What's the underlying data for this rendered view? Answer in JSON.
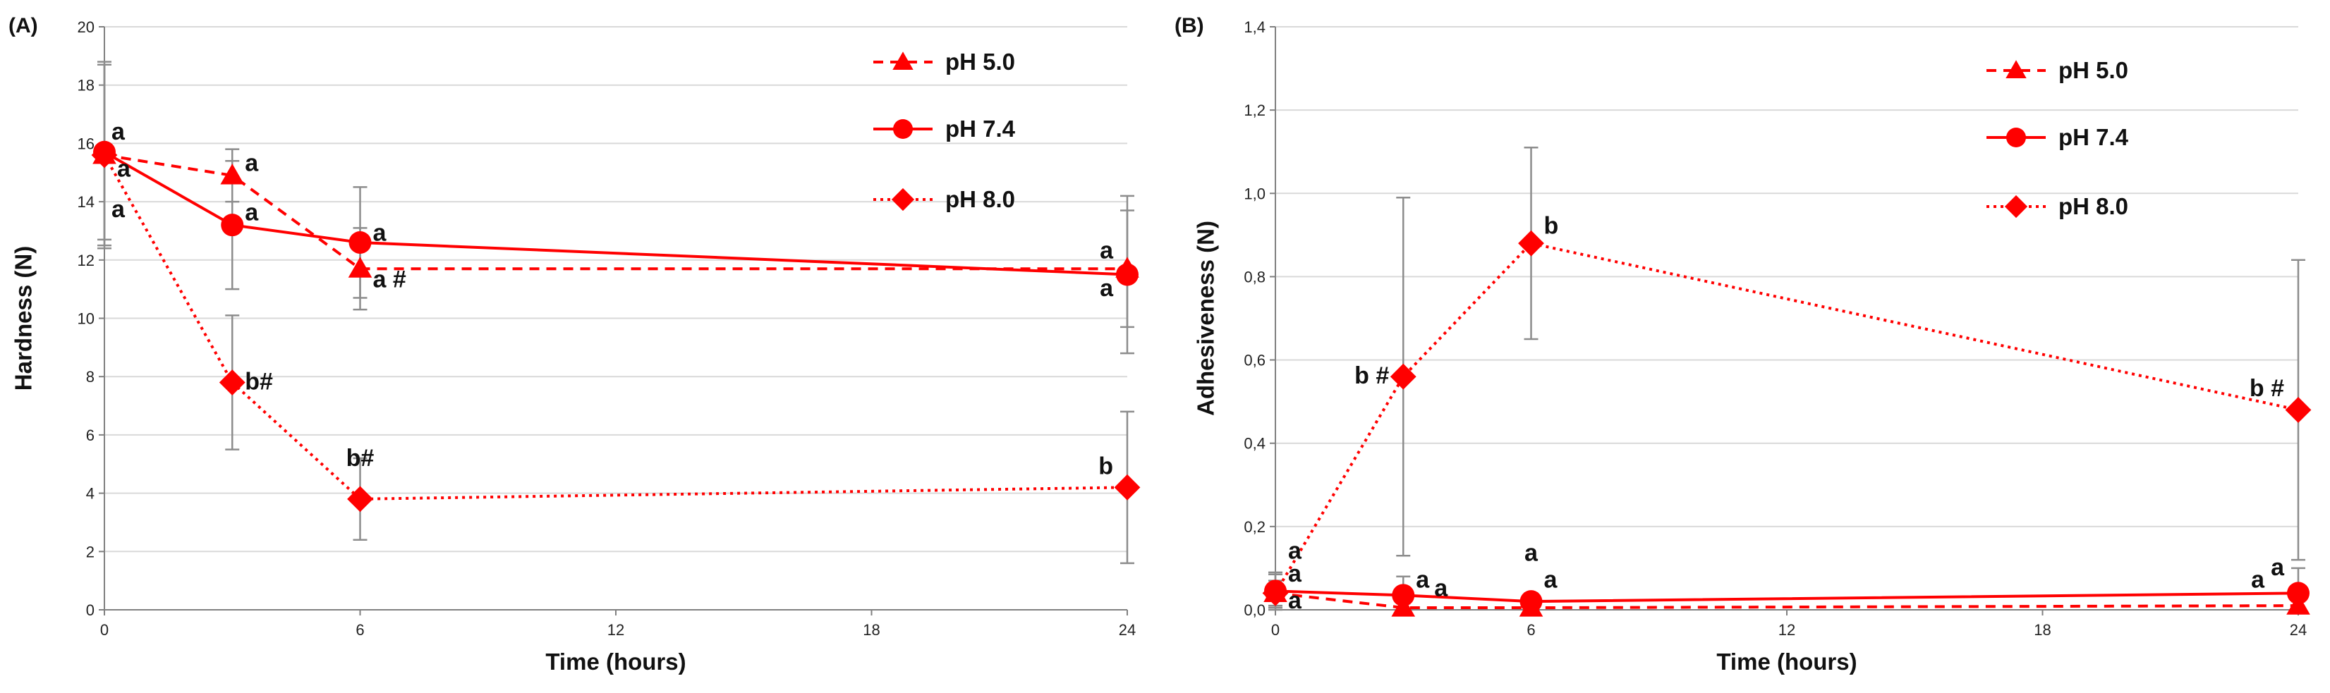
{
  "chart_data": [
    {
      "panel": "(A)",
      "type": "line",
      "xlabel": "Time (hours)",
      "ylabel": "Hardness (N)",
      "xlim": [
        0,
        24
      ],
      "ylim": [
        0,
        20
      ],
      "xticks": [
        0,
        6,
        12,
        18,
        24
      ],
      "xtick_labels": [
        "0",
        "6",
        "12",
        "18",
        "24"
      ],
      "yticks": [
        0,
        2,
        4,
        6,
        8,
        10,
        12,
        14,
        16,
        18,
        20
      ],
      "ytick_labels": [
        "0",
        "2",
        "4",
        "6",
        "8",
        "10",
        "12",
        "14",
        "16",
        "18",
        "20"
      ],
      "grid": "horizontal",
      "legend_position": "top-right",
      "series": [
        {
          "name": "pH 5.0",
          "marker": "triangle",
          "dash": "dashed",
          "x": [
            0,
            3,
            6,
            24
          ],
          "y": [
            15.6,
            14.9,
            11.7,
            11.7
          ],
          "err": [
            3.2,
            0.9,
            1.4,
            2.0
          ]
        },
        {
          "name": "pH 7.4",
          "marker": "circle",
          "dash": "solid",
          "x": [
            0,
            3,
            6,
            24
          ],
          "y": [
            15.7,
            13.2,
            12.6,
            11.5
          ],
          "err": [
            3.0,
            2.2,
            1.9,
            2.7
          ]
        },
        {
          "name": "pH 8.0",
          "marker": "diamond",
          "dash": "dotted",
          "x": [
            0,
            3,
            6,
            24
          ],
          "y": [
            15.6,
            7.8,
            3.8,
            4.2
          ],
          "err": [
            3.1,
            2.3,
            1.4,
            2.6
          ]
        }
      ],
      "annotations": [
        {
          "text": "a",
          "x": 0,
          "y": 15.7,
          "anchor": "above-right"
        },
        {
          "text": "a",
          "x": 0,
          "y": 15.1,
          "anchor": "right"
        },
        {
          "text": "a",
          "x": 0,
          "y": 14.2,
          "anchor": "below-right"
        },
        {
          "text": "a",
          "x": 3,
          "y": 15.3,
          "anchor": "right"
        },
        {
          "text": "a",
          "x": 3,
          "y": 13.6,
          "anchor": "right"
        },
        {
          "text": "b#",
          "x": 3,
          "y": 7.8,
          "anchor": "right"
        },
        {
          "text": "a",
          "x": 6,
          "y": 12.9,
          "anchor": "right"
        },
        {
          "text": "a #",
          "x": 6,
          "y": 11.3,
          "anchor": "right"
        },
        {
          "text": "b#",
          "x": 6,
          "y": 4.4,
          "anchor": "above"
        },
        {
          "text": "a",
          "x": 24,
          "y": 12.3,
          "anchor": "left"
        },
        {
          "text": "a",
          "x": 24,
          "y": 11.0,
          "anchor": "left"
        },
        {
          "text": "b",
          "x": 24,
          "y": 4.9,
          "anchor": "left"
        }
      ]
    },
    {
      "panel": "(B)",
      "type": "line",
      "xlabel": "Time (hours)",
      "ylabel": "Adhesiveness (N)",
      "xlim": [
        0,
        24
      ],
      "ylim": [
        0,
        1.4
      ],
      "xticks": [
        0,
        6,
        12,
        18,
        24
      ],
      "xtick_labels": [
        "0",
        "6",
        "12",
        "18",
        "24"
      ],
      "yticks": [
        0,
        0.2,
        0.4,
        0.6,
        0.8,
        1.0,
        1.2,
        1.4
      ],
      "ytick_labels": [
        "0,0",
        "0,2",
        "0,4",
        "0,6",
        "0,8",
        "1,0",
        "1,2",
        "1,4"
      ],
      "grid": "horizontal",
      "legend_position": "top-right",
      "series": [
        {
          "name": "pH 5.0",
          "marker": "triangle",
          "dash": "dashed",
          "x": [
            0,
            3,
            6,
            24
          ],
          "y": [
            0.04,
            0.005,
            0.005,
            0.01
          ],
          "err": [
            0.03,
            0.01,
            0.01,
            0.01
          ]
        },
        {
          "name": "pH 7.4",
          "marker": "circle",
          "dash": "solid",
          "x": [
            0,
            3,
            6,
            24
          ],
          "y": [
            0.045,
            0.035,
            0.02,
            0.04
          ],
          "err": [
            0.04,
            0.045,
            0.02,
            0.06
          ]
        },
        {
          "name": "pH 8.0",
          "marker": "diamond",
          "dash": "dotted",
          "x": [
            0,
            3,
            6,
            24
          ],
          "y": [
            0.04,
            0.56,
            0.88,
            0.48
          ],
          "err": [
            0.05,
            0.43,
            0.23,
            0.36
          ]
        }
      ],
      "annotations": [
        {
          "text": "a",
          "x": 0,
          "y": 0.14,
          "anchor": "right"
        },
        {
          "text": "a",
          "x": 0,
          "y": 0.085,
          "anchor": "right"
        },
        {
          "text": "a",
          "x": 0,
          "y": 0.02,
          "anchor": "right"
        },
        {
          "text": "b #",
          "x": 3,
          "y": 0.56,
          "anchor": "left"
        },
        {
          "text": "a",
          "x": 3,
          "y": 0.07,
          "anchor": "right"
        },
        {
          "text": "a",
          "x": 3,
          "y": 0.05,
          "anchor": "right-far"
        },
        {
          "text": "a",
          "x": 6,
          "y": 0.08,
          "anchor": "above"
        },
        {
          "text": "a",
          "x": 6,
          "y": 0.07,
          "anchor": "right"
        },
        {
          "text": "b",
          "x": 6,
          "y": 0.92,
          "anchor": "right"
        },
        {
          "text": "b #",
          "x": 24,
          "y": 0.53,
          "anchor": "left"
        },
        {
          "text": "a",
          "x": 24,
          "y": 0.07,
          "anchor": "left-far"
        },
        {
          "text": "a",
          "x": 24,
          "y": 0.1,
          "anchor": "left"
        }
      ]
    }
  ],
  "colors": {
    "series": "#ff0000",
    "error_bar": "#8c8c8c",
    "grid": "#d9d9d9",
    "axis": "#808080"
  }
}
